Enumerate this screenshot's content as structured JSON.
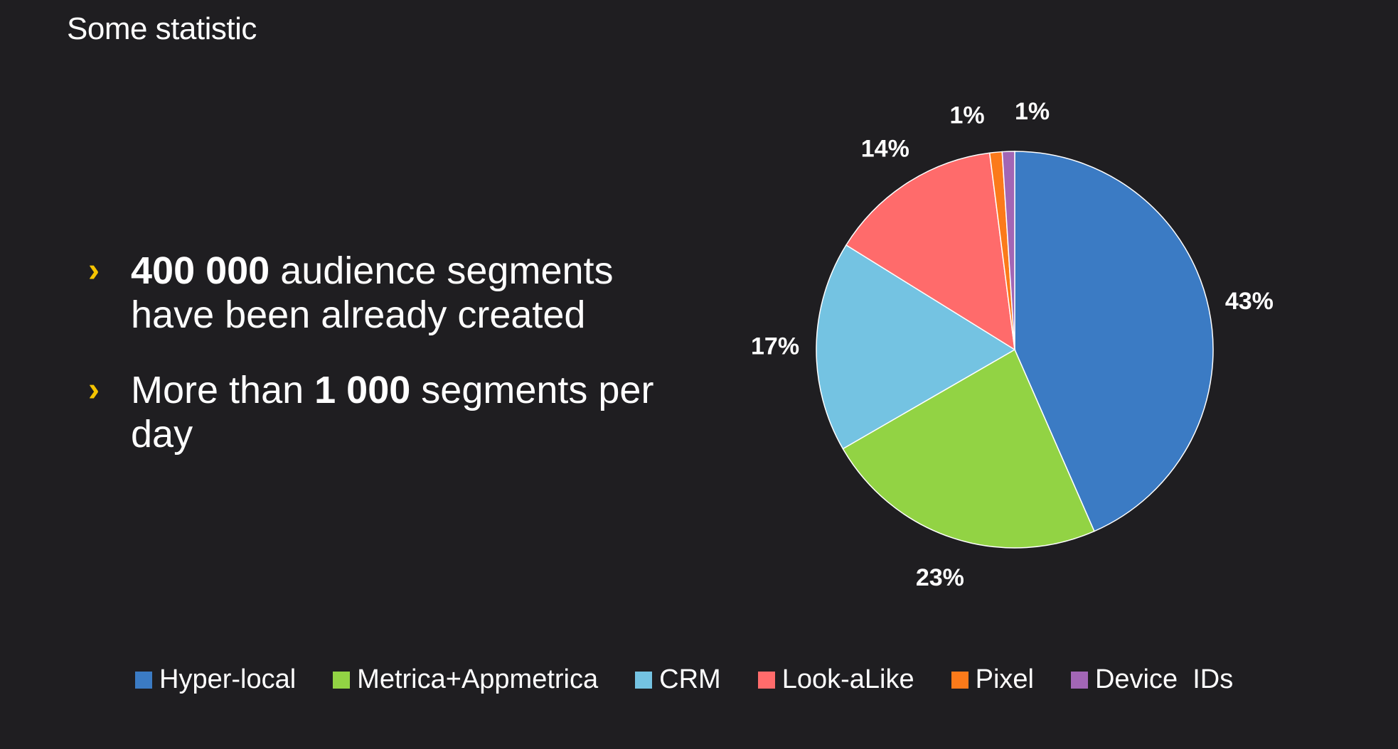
{
  "slide": {
    "title": "Some statistic"
  },
  "bullets": [
    {
      "marker": "›",
      "bold": "400 000",
      "text": " audience segments have been already created"
    },
    {
      "marker": "›",
      "prefix": "More than ",
      "bold": "1 000",
      "text": " segments per day"
    }
  ],
  "chart_data": {
    "type": "pie",
    "title": "",
    "start": "top, clockwise",
    "categories": [
      "Hyper-local",
      "Metrica+Appmetrica",
      "CRM",
      "Look-aLike",
      "Pixel",
      "Device  IDs"
    ],
    "values": [
      43,
      23,
      17,
      14,
      1,
      1
    ],
    "labels": [
      "43%",
      "23%",
      "17%",
      "14%",
      "1%",
      "1%"
    ],
    "colors": [
      "#3b7bc4",
      "#92d344",
      "#74c3e2",
      "#ff6b6b",
      "#fb7a1a",
      "#a266b5"
    ],
    "legend_position": "bottom"
  }
}
